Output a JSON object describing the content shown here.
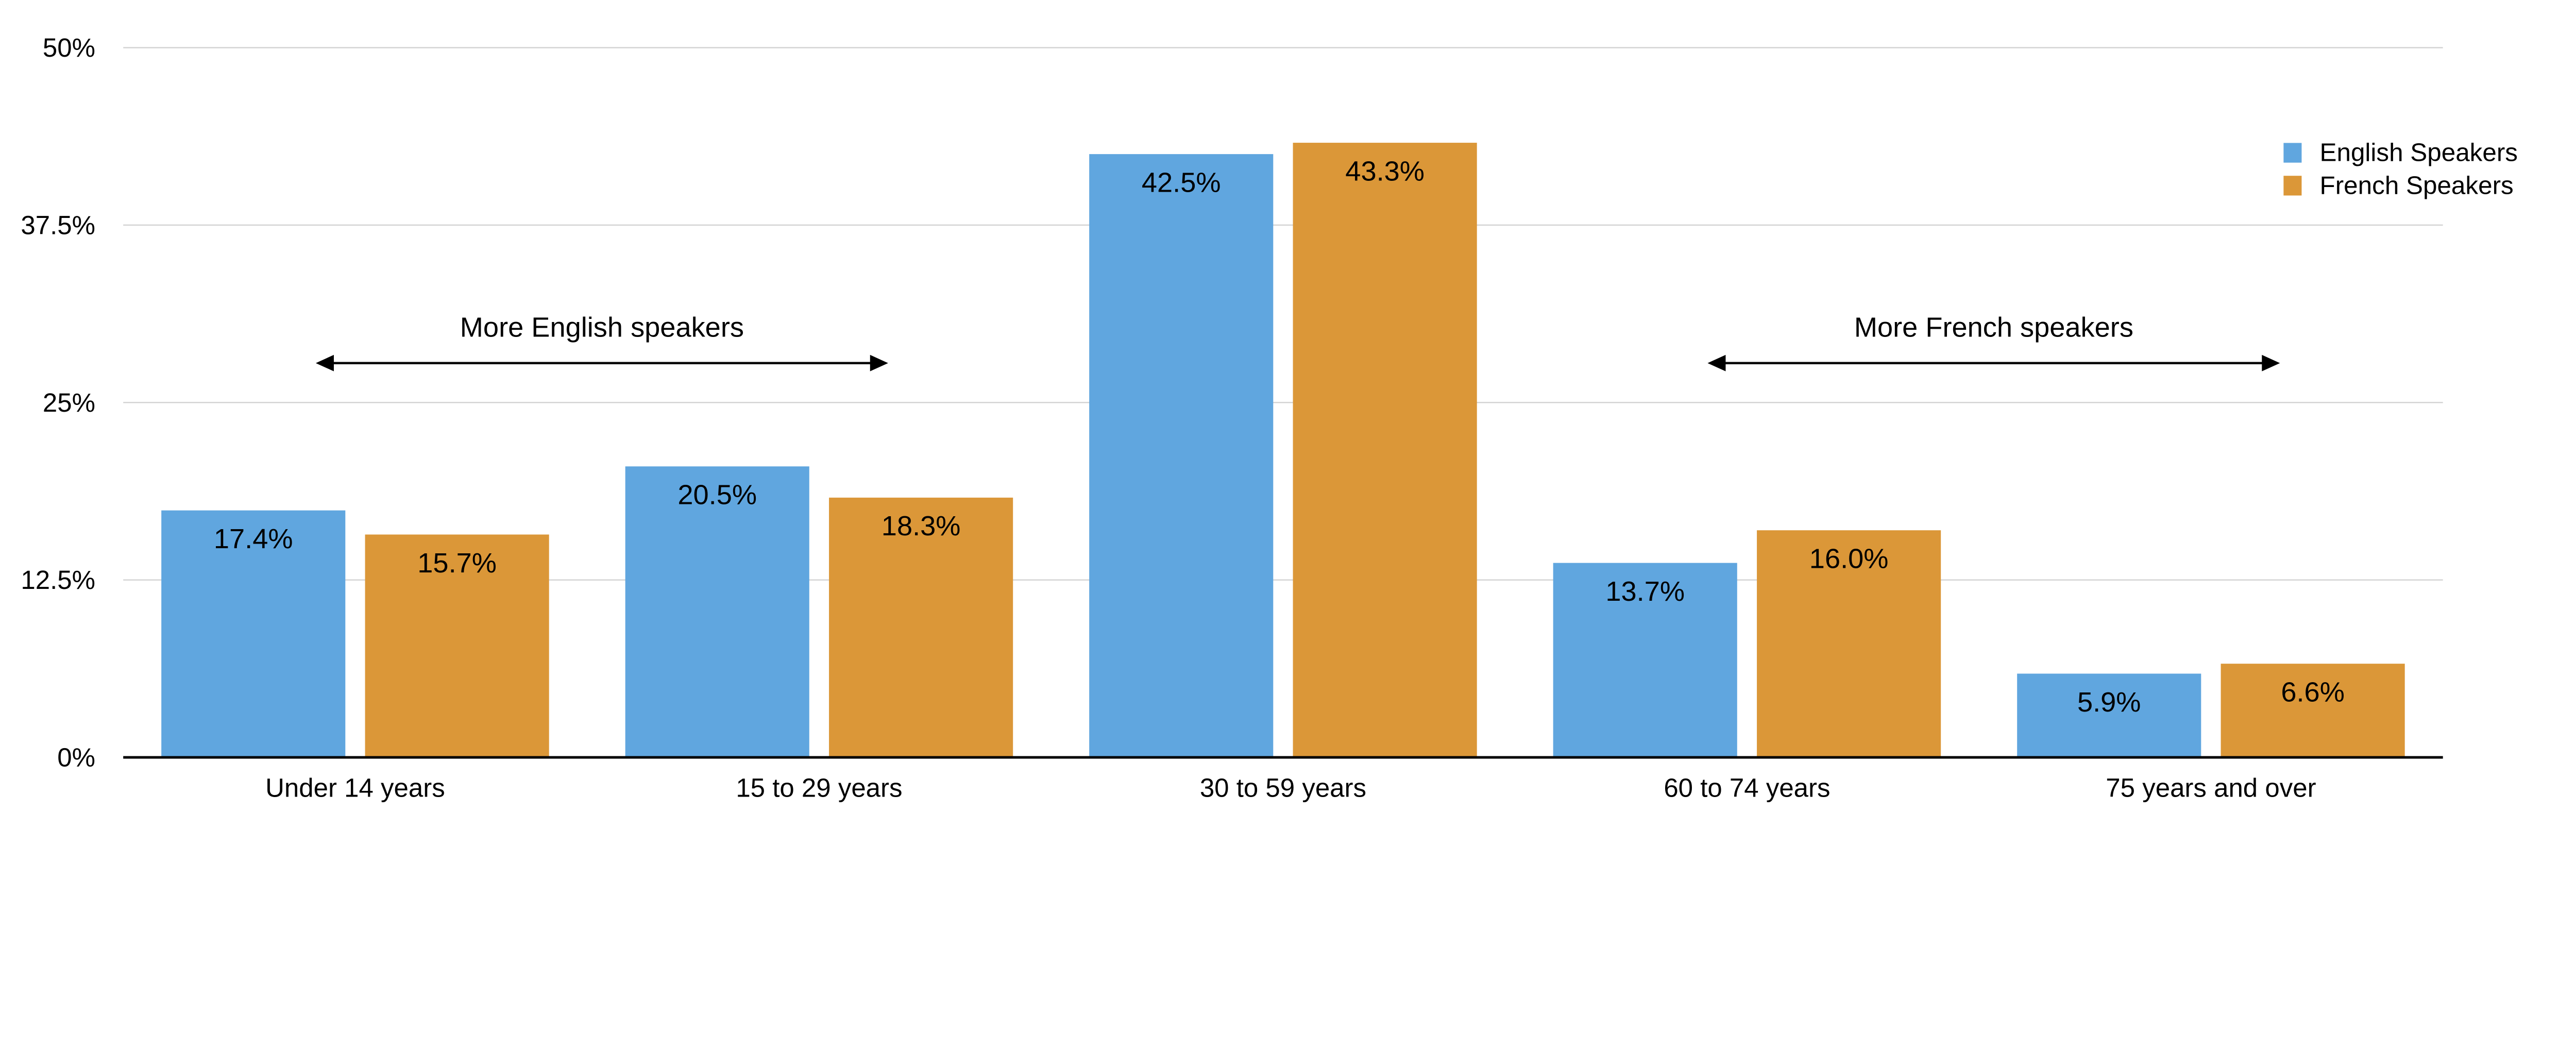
{
  "chart_data": {
    "type": "bar",
    "title": "",
    "xlabel": "",
    "ylabel": "",
    "ylim": [
      0,
      50
    ],
    "yticks": [
      0,
      12.5,
      25,
      37.5,
      50
    ],
    "ytick_labels": [
      "0%",
      "12.5%",
      "25%",
      "37.5%",
      "50%"
    ],
    "grid": true,
    "legend_placement": "top-right",
    "categories": [
      "Under 14 years",
      "15 to 29 years",
      "30 to 59 years",
      "60 to 74 years",
      "75 years and over"
    ],
    "series": [
      {
        "name": "English Speakers",
        "color": "#60A6DF",
        "values": [
          17.4,
          20.5,
          42.5,
          13.7,
          5.9
        ],
        "labels": [
          "17.4%",
          "20.5%",
          "42.5%",
          "13.7%",
          "5.9%"
        ]
      },
      {
        "name": "French Speakers",
        "color": "#DB9738",
        "values": [
          15.7,
          18.3,
          43.3,
          16.0,
          6.6
        ],
        "labels": [
          "15.7%",
          "18.3%",
          "43.3%",
          "16.0%",
          "6.6%"
        ]
      }
    ],
    "annotations": [
      {
        "text": "More English speakers",
        "from_category": "Under 14 years",
        "to_category": "15 to 29 years",
        "arrow": "double"
      },
      {
        "text": "More French speakers",
        "from_category": "60 to 74 years",
        "to_category": "75 years and over",
        "arrow": "double"
      }
    ]
  }
}
